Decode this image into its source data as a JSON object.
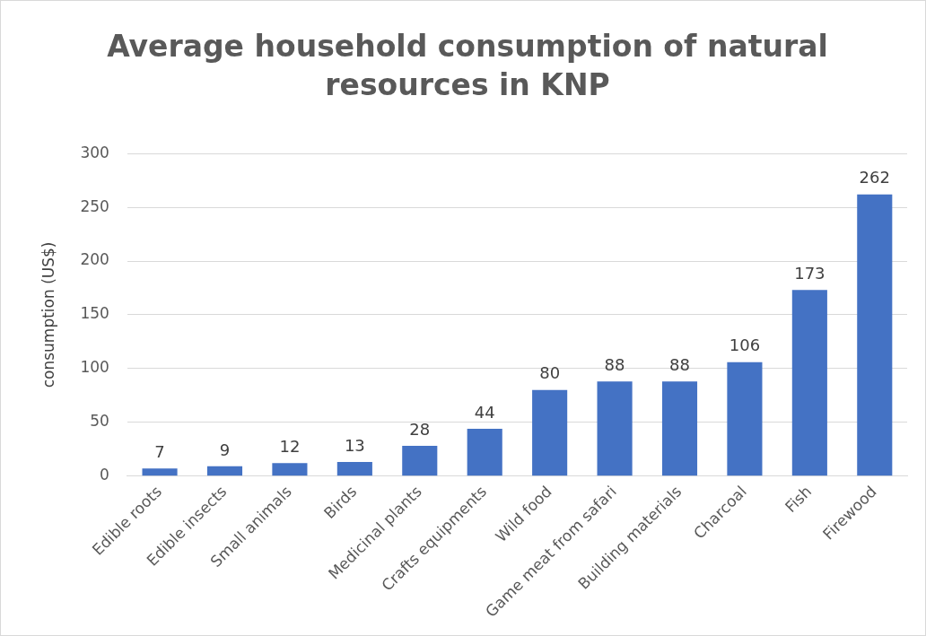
{
  "chart_data": {
    "type": "bar",
    "title": "Average household consumption of natural resources in KNP",
    "ylabel": "consumption (US$)",
    "categories": [
      "Edible roots",
      "Edible insects",
      "Small animals",
      "Birds",
      "Medicinal plants",
      "Crafts equipments",
      "Wild food",
      "Game meat from safari",
      "Building materials",
      "Charcoal",
      "Fish",
      "Firewood"
    ],
    "values": [
      7,
      9,
      12,
      13,
      28,
      44,
      80,
      88,
      88,
      106,
      173,
      262
    ],
    "color": "#4472c4",
    "ylim": [
      0,
      300
    ],
    "yticks": [
      0,
      50,
      100,
      150,
      200,
      250,
      300
    ],
    "grid": "y",
    "data_labels": true,
    "legend": false
  }
}
